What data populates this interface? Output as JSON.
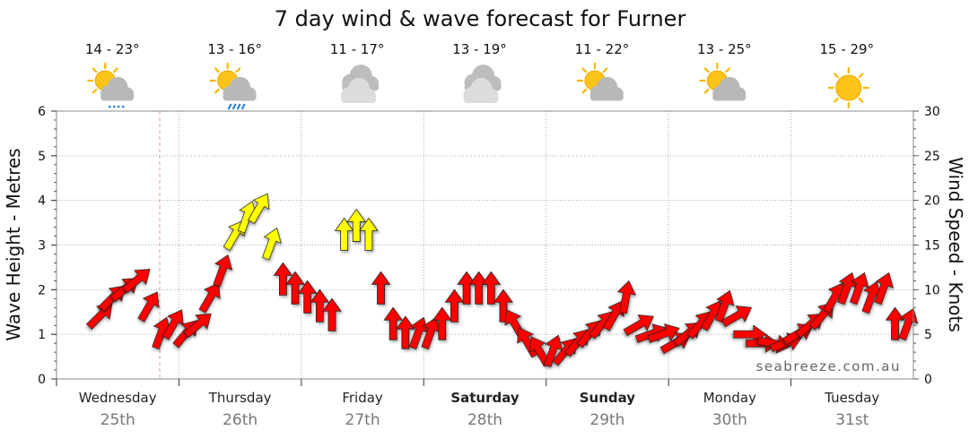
{
  "chart_data": {
    "type": "line",
    "title": "7 day wind & wave forecast for Furner",
    "ylabel_left": "Wave Height - Metres",
    "ylabel_right": "Wind Speed - Knots",
    "ylim_left": [
      0,
      6
    ],
    "ylim_right": [
      0,
      30
    ],
    "yticks_left": [
      "0",
      "1",
      "2",
      "3",
      "4",
      "5",
      "6"
    ],
    "yticks_right": [
      "0",
      "5",
      "10",
      "15",
      "20",
      "25",
      "30"
    ],
    "grid": true,
    "watermark": "seabreeze.com.au",
    "days": [
      {
        "day": "Wednesday",
        "date": "25th",
        "temps": "14 - 23°",
        "weather": "partly-cloudy-showers-icon",
        "bold": false
      },
      {
        "day": "Thursday",
        "date": "26th",
        "temps": "13 - 16°",
        "weather": "partly-cloudy-rain-icon",
        "bold": false
      },
      {
        "day": "Friday",
        "date": "27th",
        "temps": "11 - 17°",
        "weather": "cloudy-icon",
        "bold": false
      },
      {
        "day": "Saturday",
        "date": "28th",
        "temps": "13 - 19°",
        "weather": "cloudy-icon",
        "bold": true
      },
      {
        "day": "Sunday",
        "date": "29th",
        "temps": "11 - 22°",
        "weather": "partly-cloudy-icon",
        "bold": true
      },
      {
        "day": "Monday",
        "date": "30th",
        "temps": "13 - 25°",
        "weather": "partly-cloudy-icon",
        "bold": false
      },
      {
        "day": "Tuesday",
        "date": "31st",
        "temps": "15 - 29°",
        "weather": "sunny-icon",
        "bold": false
      }
    ],
    "series": [
      {
        "name": "Wind Speed",
        "units": "knots",
        "x_days": [
          0.35,
          0.45,
          0.55,
          0.65,
          0.75,
          0.85,
          0.95,
          1.05,
          1.15,
          1.25,
          1.35,
          1.45,
          1.55,
          1.65,
          1.75,
          1.85,
          1.95,
          2.05,
          2.15,
          2.25,
          2.35,
          2.45,
          2.55,
          2.65,
          2.75,
          2.85,
          2.95,
          3.05,
          3.15,
          3.25,
          3.35,
          3.45,
          3.55,
          3.65,
          3.75,
          3.85,
          3.95,
          4.05,
          4.15,
          4.25,
          4.35,
          4.45,
          4.55,
          4.65,
          4.75,
          4.85,
          4.95,
          5.05,
          5.15,
          5.25,
          5.35,
          5.45,
          5.55,
          5.65,
          5.75,
          5.85,
          5.95,
          6.05,
          6.15,
          6.25,
          6.35,
          6.45,
          6.55,
          6.65,
          6.75,
          6.85,
          6.95
        ],
        "values": [
          7,
          9,
          10,
          11,
          8,
          5,
          6,
          5,
          6,
          9,
          12,
          16,
          18,
          19,
          15,
          11,
          10,
          9,
          8,
          7,
          16,
          17,
          16,
          10,
          6,
          5,
          5,
          5,
          6,
          8,
          10,
          10,
          10,
          8,
          6,
          4,
          3,
          3,
          3,
          4,
          5,
          6,
          7,
          9,
          6,
          5,
          5,
          4,
          5,
          6,
          7,
          8,
          7,
          5,
          4,
          4,
          4,
          5,
          6,
          7,
          9,
          10,
          10,
          9,
          10,
          6,
          6
        ],
        "directions_deg": [
          225,
          225,
          230,
          230,
          210,
          200,
          210,
          220,
          230,
          210,
          200,
          210,
          200,
          210,
          200,
          180,
          180,
          180,
          180,
          180,
          180,
          180,
          180,
          180,
          180,
          180,
          200,
          200,
          180,
          180,
          180,
          180,
          180,
          180,
          150,
          150,
          150,
          200,
          220,
          220,
          220,
          220,
          210,
          190,
          240,
          250,
          250,
          240,
          230,
          220,
          210,
          200,
          240,
          270,
          270,
          280,
          250,
          240,
          230,
          220,
          210,
          200,
          200,
          200,
          200,
          180,
          200
        ]
      }
    ]
  }
}
